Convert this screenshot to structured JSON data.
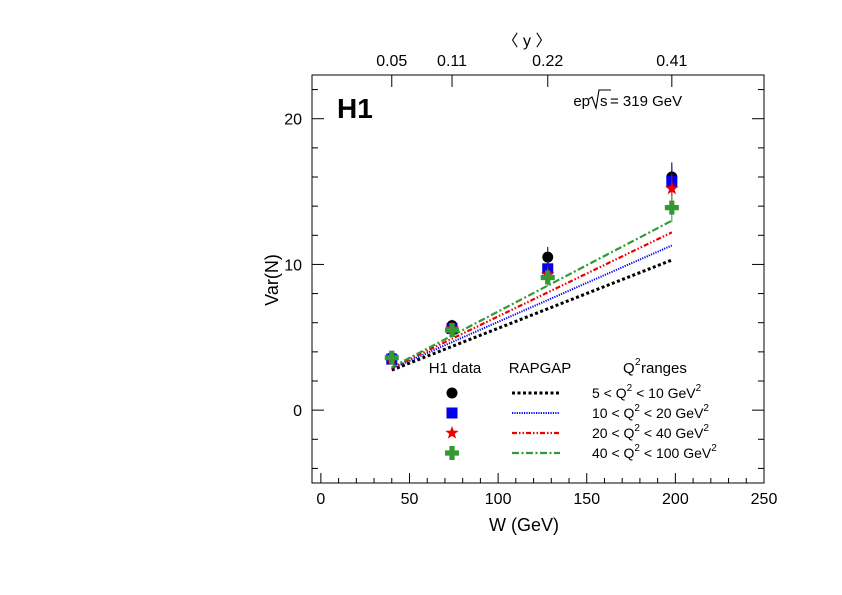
{
  "chart_data": {
    "type": "scatter",
    "logo": "H1",
    "energy_label_pre": "ep ",
    "energy_label_sqrt": "s",
    "energy_label_post": " = 319 GeV",
    "xlabel": "W (GeV)",
    "ylabel": "Var(N)",
    "top_axis_label": "〈 y 〉",
    "xlim": [
      -5,
      250
    ],
    "ylim": [
      -5,
      23
    ],
    "x_ticks": [
      0,
      50,
      100,
      150,
      200,
      250
    ],
    "y_ticks": [
      0,
      10,
      20
    ],
    "top_ticks": [
      {
        "x": 40,
        "label": "0.05"
      },
      {
        "x": 74,
        "label": "0.11"
      },
      {
        "x": 128,
        "label": "0.22"
      },
      {
        "x": 198,
        "label": "0.41"
      }
    ],
    "legend": {
      "header_data": "H1 data",
      "header_model": "RAPGAP",
      "header_q2_pre": "Q",
      "header_q2_sup": "2",
      "header_q2_post": " ranges"
    },
    "colors": {
      "black": "#000000",
      "blue": "#0000ee",
      "red": "#ee0000",
      "green": "#339933"
    },
    "series": [
      {
        "name": "5 < Q² < 10 GeV²",
        "label_parts": [
          "5 < Q",
          "2",
          " < 10 GeV",
          "2"
        ],
        "marker": "circle",
        "line_style": "dotted",
        "color": "#000000",
        "data": [
          {
            "x": 40,
            "y": 3.6,
            "err": 0.3
          },
          {
            "x": 74,
            "y": 5.8,
            "err": 0.4
          },
          {
            "x": 128,
            "y": 10.5,
            "err": 0.7
          },
          {
            "x": 198,
            "y": 16.0,
            "err": 1.0
          }
        ],
        "model": [
          [
            40,
            2.75
          ],
          [
            198,
            10.3
          ]
        ]
      },
      {
        "name": "10 < Q² < 20 GeV²",
        "label_parts": [
          "10 < Q",
          "2",
          " < 20 GeV",
          "2"
        ],
        "marker": "square",
        "line_style": "finedot",
        "color": "#0000ee",
        "data": [
          {
            "x": 40,
            "y": 3.5,
            "err": 0.3
          },
          {
            "x": 74,
            "y": 5.6,
            "err": 0.4
          },
          {
            "x": 128,
            "y": 9.7,
            "err": 0.6
          },
          {
            "x": 198,
            "y": 15.7,
            "err": 1.0
          }
        ],
        "model": [
          [
            40,
            2.85
          ],
          [
            198,
            11.3
          ]
        ]
      },
      {
        "name": "20 < Q² < 40 GeV²",
        "label_parts": [
          "20 < Q",
          "2",
          " < 40 GeV",
          "2"
        ],
        "marker": "star",
        "line_style": "dashdotdot",
        "color": "#ee0000",
        "data": [
          {
            "x": 40,
            "y": 3.6,
            "err": 0.3
          },
          {
            "x": 74,
            "y": 5.6,
            "err": 0.4
          },
          {
            "x": 128,
            "y": 9.3,
            "err": 0.6
          },
          {
            "x": 198,
            "y": 15.2,
            "err": 1.0
          }
        ],
        "model": [
          [
            40,
            2.9
          ],
          [
            198,
            12.2
          ]
        ]
      },
      {
        "name": "40 < Q² < 100 GeV²",
        "label_parts": [
          "40 < Q",
          "2",
          " < 100 GeV",
          "2"
        ],
        "marker": "cross",
        "line_style": "dashdot",
        "color": "#339933",
        "data": [
          {
            "x": 40,
            "y": 3.6,
            "err": 0.3
          },
          {
            "x": 74,
            "y": 5.5,
            "err": 0.4
          },
          {
            "x": 128,
            "y": 9.1,
            "err": 0.6
          },
          {
            "x": 198,
            "y": 13.9,
            "err": 1.0
          }
        ],
        "model": [
          [
            40,
            2.95
          ],
          [
            198,
            13.0
          ]
        ]
      }
    ]
  }
}
